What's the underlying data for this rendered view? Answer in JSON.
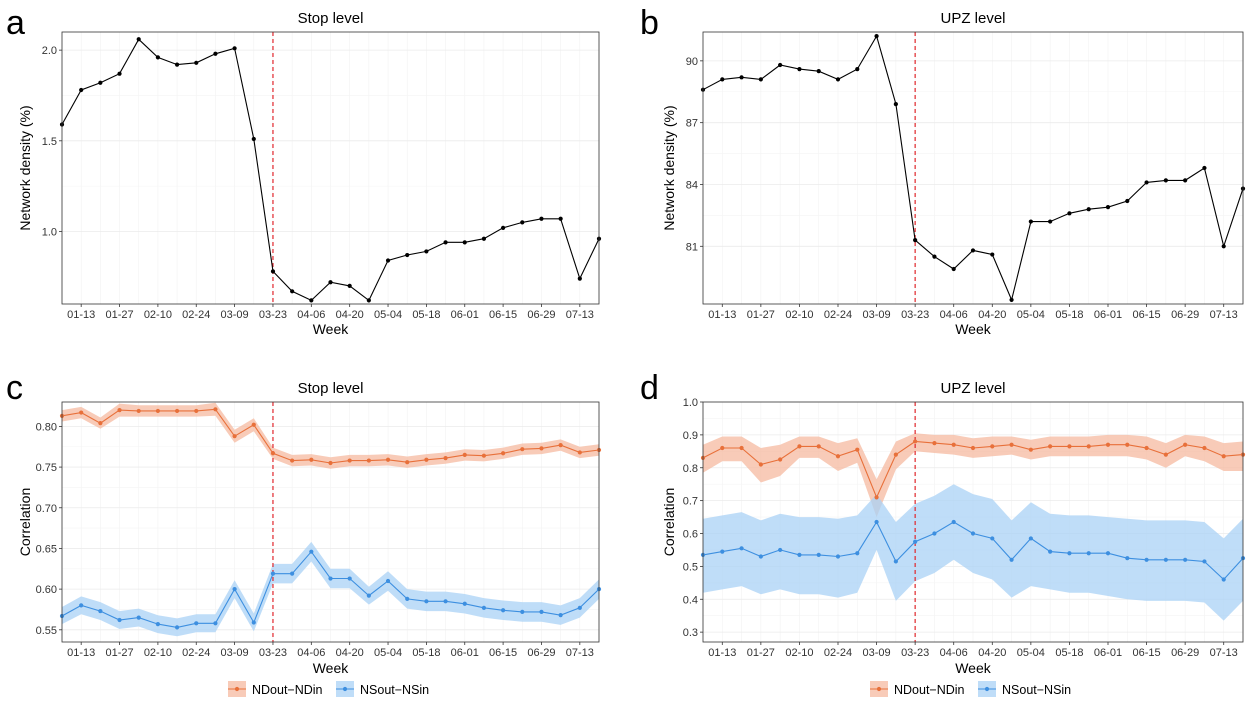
{
  "weeks": [
    "01-06",
    "01-13",
    "01-20",
    "01-27",
    "02-03",
    "02-10",
    "02-17",
    "02-24",
    "03-02",
    "03-09",
    "03-16",
    "03-23",
    "03-30",
    "04-06",
    "04-13",
    "04-20",
    "04-27",
    "05-04",
    "05-11",
    "05-18",
    "05-25",
    "06-01",
    "06-08",
    "06-15",
    "06-22",
    "06-29",
    "07-06",
    "07-13",
    "07-20"
  ],
  "tick_labels": [
    "01-13",
    "01-27",
    "02-10",
    "02-24",
    "03-09",
    "03-23",
    "04-06",
    "04-20",
    "05-04",
    "05-18",
    "06-01",
    "06-15",
    "06-29",
    "07-13"
  ],
  "chart_data": [
    {
      "panel": "a",
      "type": "line",
      "title": "Stop level",
      "xlabel": "Week",
      "ylabel": "Network density (%)",
      "ylim": [
        0.6,
        2.1
      ],
      "yticks": [
        1.0,
        1.5,
        2.0
      ],
      "ytick_labels": [
        "1.0",
        "1.5",
        "2.0"
      ],
      "vline_at": "03-23",
      "series": [
        {
          "color": "#000000",
          "values": [
            1.59,
            1.78,
            1.82,
            1.87,
            2.06,
            1.96,
            1.92,
            1.93,
            1.98,
            2.01,
            1.51,
            0.78,
            0.67,
            0.62,
            0.72,
            0.7,
            0.62,
            0.84,
            0.87,
            0.89,
            0.94,
            0.94,
            0.96,
            1.02,
            1.05,
            1.07,
            1.07,
            0.74,
            0.96
          ]
        }
      ]
    },
    {
      "panel": "b",
      "type": "line",
      "title": "UPZ level",
      "xlabel": "Week",
      "ylabel": "Network density (%)",
      "ylim": [
        78.2,
        91.4
      ],
      "yticks": [
        81,
        84,
        87,
        90
      ],
      "ytick_labels": [
        "81",
        "84",
        "87",
        "90"
      ],
      "vline_at": "03-23",
      "series": [
        {
          "color": "#000000",
          "values": [
            88.6,
            89.1,
            89.2,
            89.1,
            89.8,
            89.6,
            89.5,
            89.1,
            89.6,
            91.2,
            87.9,
            81.3,
            80.5,
            79.9,
            80.8,
            80.6,
            78.4,
            82.2,
            82.2,
            82.6,
            82.8,
            82.9,
            83.2,
            84.1,
            84.2,
            84.2,
            84.8,
            81.0,
            83.8
          ]
        }
      ]
    },
    {
      "panel": "c",
      "type": "line",
      "title": "Stop level",
      "xlabel": "Week",
      "ylabel": "Correlation",
      "ylim": [
        0.535,
        0.83
      ],
      "yticks": [
        0.55,
        0.6,
        0.65,
        0.7,
        0.75,
        0.8
      ],
      "ytick_labels": [
        "0.55",
        "0.60",
        "0.65",
        "0.70",
        "0.75",
        "0.80"
      ],
      "vline_at": "03-23",
      "series": [
        {
          "name": "NDout−NDin",
          "color": "#e8703a",
          "band_color": "#f6b9a0",
          "values": [
            0.813,
            0.817,
            0.804,
            0.82,
            0.819,
            0.819,
            0.819,
            0.819,
            0.821,
            0.788,
            0.802,
            0.767,
            0.758,
            0.759,
            0.755,
            0.758,
            0.758,
            0.759,
            0.756,
            0.759,
            0.761,
            0.765,
            0.764,
            0.767,
            0.772,
            0.773,
            0.777,
            0.768,
            0.771
          ],
          "lower": [
            0.806,
            0.81,
            0.797,
            0.812,
            0.812,
            0.812,
            0.812,
            0.812,
            0.813,
            0.78,
            0.794,
            0.76,
            0.751,
            0.752,
            0.748,
            0.751,
            0.751,
            0.752,
            0.749,
            0.752,
            0.754,
            0.758,
            0.757,
            0.76,
            0.765,
            0.766,
            0.77,
            0.761,
            0.764
          ],
          "upper": [
            0.82,
            0.824,
            0.811,
            0.828,
            0.826,
            0.826,
            0.826,
            0.826,
            0.829,
            0.796,
            0.81,
            0.774,
            0.765,
            0.766,
            0.762,
            0.765,
            0.765,
            0.766,
            0.763,
            0.766,
            0.768,
            0.772,
            0.771,
            0.774,
            0.779,
            0.78,
            0.784,
            0.775,
            0.778
          ]
        },
        {
          "name": "NSout−NSin",
          "color": "#3d8fe0",
          "band_color": "#a9d2f5",
          "values": [
            0.567,
            0.58,
            0.573,
            0.562,
            0.565,
            0.557,
            0.553,
            0.558,
            0.558,
            0.6,
            0.559,
            0.619,
            0.619,
            0.646,
            0.613,
            0.613,
            0.592,
            0.61,
            0.588,
            0.585,
            0.585,
            0.582,
            0.577,
            0.574,
            0.572,
            0.572,
            0.568,
            0.577,
            0.6
          ],
          "lower": [
            0.557,
            0.569,
            0.562,
            0.551,
            0.554,
            0.546,
            0.542,
            0.547,
            0.547,
            0.589,
            0.548,
            0.607,
            0.607,
            0.634,
            0.601,
            0.601,
            0.581,
            0.598,
            0.576,
            0.573,
            0.573,
            0.57,
            0.565,
            0.562,
            0.56,
            0.56,
            0.556,
            0.565,
            0.588
          ],
          "upper": [
            0.578,
            0.591,
            0.584,
            0.573,
            0.576,
            0.568,
            0.564,
            0.569,
            0.569,
            0.611,
            0.57,
            0.631,
            0.631,
            0.658,
            0.625,
            0.625,
            0.603,
            0.622,
            0.6,
            0.597,
            0.597,
            0.594,
            0.589,
            0.586,
            0.584,
            0.584,
            0.58,
            0.589,
            0.612
          ]
        }
      ]
    },
    {
      "panel": "d",
      "type": "line",
      "title": "UPZ level",
      "xlabel": "Week",
      "ylabel": "Correlation",
      "ylim": [
        0.27,
        1.0
      ],
      "yticks": [
        0.3,
        0.4,
        0.5,
        0.6,
        0.7,
        0.8,
        0.9,
        1.0
      ],
      "ytick_labels": [
        "0.3",
        "0.4",
        "0.5",
        "0.6",
        "0.7",
        "0.8",
        "0.9",
        "1.0"
      ],
      "vline_at": "03-23",
      "series": [
        {
          "name": "NDout−NDin",
          "color": "#e8703a",
          "band_color": "#f6b9a0",
          "values": [
            0.83,
            0.86,
            0.86,
            0.81,
            0.825,
            0.865,
            0.865,
            0.835,
            0.855,
            0.71,
            0.84,
            0.88,
            0.875,
            0.87,
            0.86,
            0.865,
            0.87,
            0.855,
            0.865,
            0.865,
            0.865,
            0.87,
            0.87,
            0.86,
            0.84,
            0.87,
            0.86,
            0.835,
            0.84
          ],
          "lower": [
            0.785,
            0.82,
            0.82,
            0.755,
            0.775,
            0.83,
            0.83,
            0.79,
            0.815,
            0.65,
            0.795,
            0.85,
            0.845,
            0.84,
            0.83,
            0.835,
            0.84,
            0.825,
            0.835,
            0.835,
            0.835,
            0.835,
            0.835,
            0.825,
            0.8,
            0.835,
            0.82,
            0.79,
            0.79
          ],
          "upper": [
            0.87,
            0.895,
            0.895,
            0.86,
            0.87,
            0.895,
            0.895,
            0.875,
            0.89,
            0.765,
            0.88,
            0.905,
            0.9,
            0.9,
            0.89,
            0.895,
            0.895,
            0.885,
            0.895,
            0.895,
            0.895,
            0.9,
            0.9,
            0.895,
            0.875,
            0.9,
            0.895,
            0.875,
            0.88
          ]
        },
        {
          "name": "NSout−NSin",
          "color": "#3d8fe0",
          "band_color": "#a9d2f5",
          "values": [
            0.535,
            0.545,
            0.555,
            0.53,
            0.55,
            0.535,
            0.535,
            0.53,
            0.54,
            0.635,
            0.515,
            0.575,
            0.6,
            0.635,
            0.6,
            0.585,
            0.52,
            0.585,
            0.545,
            0.54,
            0.54,
            0.54,
            0.525,
            0.52,
            0.52,
            0.52,
            0.515,
            0.46,
            0.525
          ],
          "lower": [
            0.42,
            0.43,
            0.44,
            0.415,
            0.43,
            0.415,
            0.415,
            0.405,
            0.42,
            0.55,
            0.395,
            0.455,
            0.48,
            0.52,
            0.48,
            0.46,
            0.405,
            0.44,
            0.43,
            0.42,
            0.42,
            0.41,
            0.4,
            0.395,
            0.395,
            0.395,
            0.39,
            0.335,
            0.395
          ],
          "upper": [
            0.645,
            0.655,
            0.665,
            0.64,
            0.66,
            0.65,
            0.65,
            0.645,
            0.655,
            0.72,
            0.635,
            0.69,
            0.715,
            0.75,
            0.72,
            0.705,
            0.64,
            0.695,
            0.66,
            0.655,
            0.655,
            0.65,
            0.645,
            0.64,
            0.64,
            0.64,
            0.635,
            0.585,
            0.645
          ]
        }
      ]
    }
  ],
  "legends": [
    {
      "panel": "c",
      "items": [
        {
          "label": "NDout−NDin",
          "color": "#e8703a",
          "band_color": "#f6b9a0"
        },
        {
          "label": "NSout−NSin",
          "color": "#3d8fe0",
          "band_color": "#a9d2f5"
        }
      ]
    },
    {
      "panel": "d",
      "items": [
        {
          "label": "NDout−NDin",
          "color": "#e8703a",
          "band_color": "#f6b9a0"
        },
        {
          "label": "NSout−NSin",
          "color": "#3d8fe0",
          "band_color": "#a9d2f5"
        }
      ]
    }
  ],
  "vline_color": "#e0262b"
}
